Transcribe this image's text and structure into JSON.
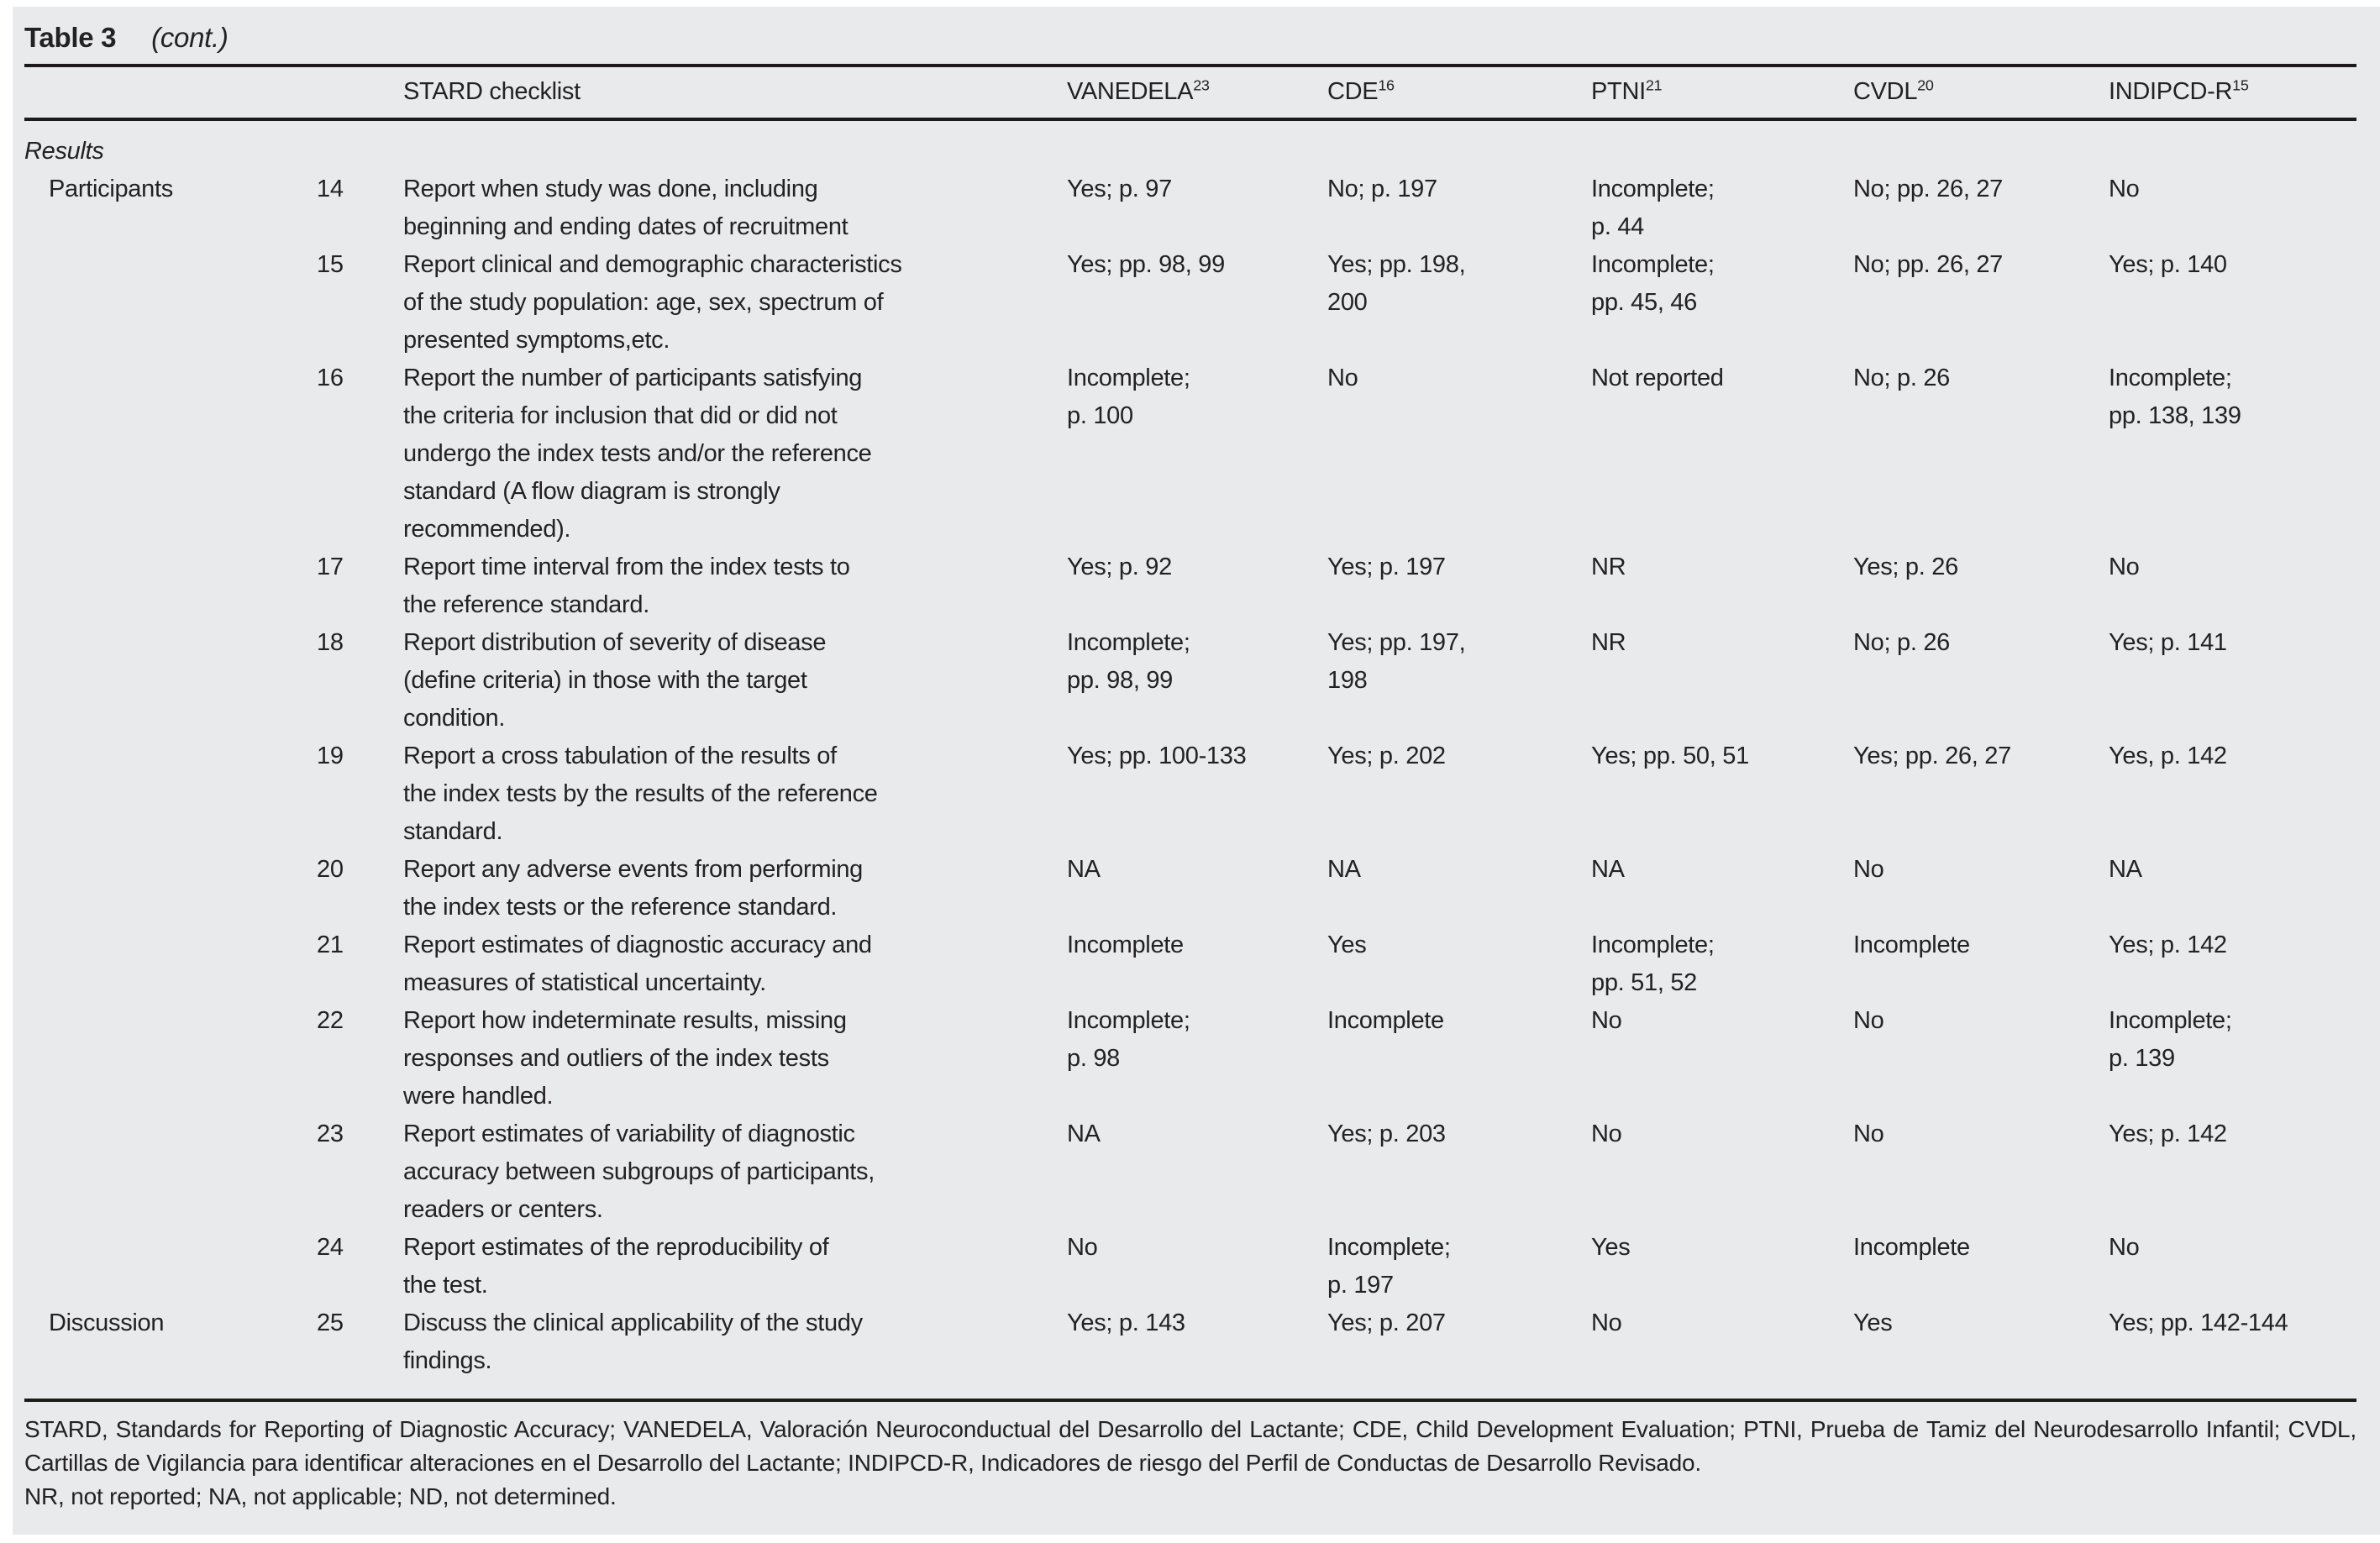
{
  "page": {
    "title": "Table 3",
    "title_note": "(cont.)"
  },
  "table": {
    "header": {
      "checklist_label": "STARD checklist",
      "tests": [
        {
          "name": "VANEDELA",
          "ref": "23"
        },
        {
          "name": "CDE",
          "ref": "16"
        },
        {
          "name": "PTNI",
          "ref": "21"
        },
        {
          "name": "CVDL",
          "ref": "20"
        },
        {
          "name": "INDIPCD-R",
          "ref": "15"
        }
      ]
    },
    "section_label": "Results",
    "rows": [
      {
        "group": "Participants",
        "num": "14",
        "text": "Report when study was done, including\nbeginning and ending dates of recruitment",
        "values": [
          "Yes; p. 97",
          "No; p. 197",
          "Incomplete;\np. 44",
          "No; pp. 26, 27",
          "No"
        ]
      },
      {
        "group": "",
        "num": "15",
        "text": "Report clinical and demographic characteristics\nof the study population: age, sex, spectrum of\npresented symptoms,etc.",
        "values": [
          "Yes; pp. 98, 99",
          "Yes; pp. 198,\n200",
          "Incomplete;\npp. 45, 46",
          "No; pp. 26, 27",
          "Yes; p. 140"
        ]
      },
      {
        "group": "",
        "num": "16",
        "text": "Report the number of participants satisfying\nthe criteria for inclusion that did or did not\nundergo the index tests and/or the reference\nstandard (A flow diagram is strongly\nrecommended).",
        "values": [
          "Incomplete;\np. 100",
          "No",
          "Not reported",
          "No; p. 26",
          "Incomplete;\npp. 138, 139"
        ]
      },
      {
        "group": "",
        "num": "17",
        "text": "Report time interval from the index tests to\nthe reference standard.",
        "values": [
          "Yes; p. 92",
          "Yes; p. 197",
          "NR",
          "Yes; p. 26",
          "No"
        ]
      },
      {
        "group": "",
        "num": "18",
        "text": "Report distribution of severity of disease\n(define criteria) in those with the target\ncondition.",
        "values": [
          "Incomplete;\npp. 98, 99",
          "Yes; pp. 197,\n198",
          "NR",
          "No; p. 26",
          "Yes; p. 141"
        ]
      },
      {
        "group": "",
        "num": "19",
        "text": "Report a cross tabulation of the results of\nthe index tests by the results of the reference\nstandard.",
        "values": [
          "Yes; pp. 100-133",
          "Yes; p. 202",
          "Yes; pp. 50, 51",
          "Yes; pp. 26, 27",
          "Yes, p. 142"
        ]
      },
      {
        "group": "",
        "num": "20",
        "text": "Report any adverse events from performing\nthe index tests or the reference standard.",
        "values": [
          "NA",
          "NA",
          "NA",
          "No",
          "NA"
        ]
      },
      {
        "group": "",
        "num": "21",
        "text": "Report estimates of diagnostic accuracy and\nmeasures of statistical uncertainty.",
        "values": [
          "Incomplete",
          "Yes",
          "Incomplete;\npp. 51, 52",
          "Incomplete",
          "Yes; p. 142"
        ]
      },
      {
        "group": "",
        "num": "22",
        "text": "Report how indeterminate results, missing\nresponses and outliers of the index tests\nwere handled.",
        "values": [
          "Incomplete;\np. 98",
          "Incomplete",
          "No",
          "No",
          "Incomplete;\np. 139"
        ]
      },
      {
        "group": "",
        "num": "23",
        "text": "Report estimates of variability of diagnostic\naccuracy between subgroups of participants,\nreaders or centers.",
        "values": [
          "NA",
          "Yes; p. 203",
          "No",
          "No",
          "Yes; p. 142"
        ]
      },
      {
        "group": "",
        "num": "24",
        "text": "Report estimates of the reproducibility of\nthe test.",
        "values": [
          "No",
          "Incomplete;\np. 197",
          "Yes",
          "Incomplete",
          "No"
        ]
      },
      {
        "group": "Discussion",
        "num": "25",
        "text": "Discuss the clinical applicability of the study\nfindings.",
        "values": [
          "Yes; p. 143",
          "Yes; p. 207",
          "No",
          "Yes",
          "Yes; pp. 142-144"
        ]
      }
    ],
    "footnotes": {
      "abbreviations": "STARD, Standards for Reporting of Diagnostic Accuracy; VANEDELA, Valoración Neuroconductual del Desarrollo del Lactante; CDE, Child Development Evaluation; PTNI, Prueba de Tamiz del Neurodesarrollo Infantil; CVDL, Cartillas de Vigilancia para identificar alteraciones en el Desarrollo del Lactante; INDIPCD-R, Indicadores de riesgo del Perfil de Conductas de Desarrollo Revisado.",
      "codes": "NR, not reported; NA, not applicable; ND, not determined."
    }
  }
}
